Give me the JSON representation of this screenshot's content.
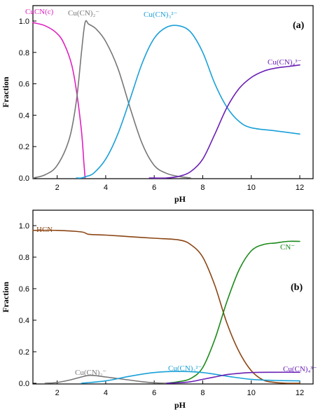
{
  "chart_data": [
    {
      "type": "line",
      "panel_label": "(a)",
      "xlabel": "pH",
      "ylabel": "Fraction",
      "xlim": [
        1,
        12
      ],
      "ylim": [
        0,
        1.0
      ],
      "xticks": [
        2,
        4,
        6,
        8,
        10,
        12
      ],
      "yticks": [
        0.0,
        0.2,
        0.4,
        0.6,
        0.8,
        1.0
      ],
      "ytick_labels": [
        "0.0",
        "0.2",
        "0.4",
        "0.6",
        "0.8",
        "1.0"
      ],
      "grid": false,
      "series": [
        {
          "name": "CuCN(c)",
          "color": "#e020c0",
          "x": [
            1.0,
            1.5,
            2.0,
            2.3,
            2.6,
            2.8,
            3.0,
            3.1,
            3.15
          ],
          "y": [
            0.99,
            0.97,
            0.92,
            0.85,
            0.72,
            0.55,
            0.3,
            0.1,
            0.0
          ]
        },
        {
          "name": "Cu(CN)₂⁻",
          "color": "#777777",
          "x": [
            1.0,
            1.5,
            2.0,
            2.5,
            2.8,
            3.0,
            3.15,
            3.3,
            3.6,
            4.0,
            4.5,
            5.0,
            5.5,
            6.0,
            6.5,
            7.0,
            7.5
          ],
          "y": [
            0.0,
            0.02,
            0.08,
            0.25,
            0.5,
            0.8,
            0.99,
            0.98,
            0.95,
            0.87,
            0.7,
            0.45,
            0.22,
            0.08,
            0.03,
            0.01,
            0.0
          ]
        },
        {
          "name": "Cu(CN)₃²⁻",
          "color": "#1aa0d8",
          "x": [
            2.8,
            3.0,
            3.2,
            3.5,
            4.0,
            4.5,
            5.0,
            5.5,
            6.0,
            6.5,
            7.0,
            7.5,
            8.0,
            8.5,
            9.0,
            9.5,
            10.0,
            11.0,
            12.0
          ],
          "y": [
            0.0,
            0.0,
            0.01,
            0.03,
            0.12,
            0.28,
            0.5,
            0.73,
            0.89,
            0.96,
            0.97,
            0.93,
            0.8,
            0.6,
            0.45,
            0.36,
            0.32,
            0.3,
            0.28
          ]
        },
        {
          "name": "Cu(CN)₄³⁻",
          "color": "#6a1fb5",
          "x": [
            5.8,
            6.5,
            7.0,
            7.5,
            8.0,
            8.5,
            9.0,
            9.5,
            10.0,
            10.5,
            11.0,
            11.5,
            12.0
          ],
          "y": [
            0.0,
            0.0,
            0.01,
            0.04,
            0.12,
            0.28,
            0.45,
            0.57,
            0.64,
            0.68,
            0.7,
            0.71,
            0.72
          ]
        }
      ]
    },
    {
      "type": "line",
      "panel_label": "(b)",
      "xlabel": "pH",
      "ylabel": "Fraction",
      "xlim": [
        1,
        12
      ],
      "ylim": [
        0,
        1.0
      ],
      "xticks": [
        2,
        4,
        6,
        8,
        10,
        12
      ],
      "yticks": [
        0.0,
        0.2,
        0.4,
        0.6,
        0.8,
        1.0
      ],
      "ytick_labels": [
        "0.0",
        "0.2",
        "0.4",
        "0.6",
        "0.8",
        "1.0"
      ],
      "grid": false,
      "series": [
        {
          "name": "HCN",
          "color": "#8b4513",
          "x": [
            1.0,
            2.0,
            3.0,
            3.3,
            4.0,
            5.0,
            6.0,
            7.0,
            7.5,
            8.0,
            8.5,
            9.0,
            9.5,
            10.0,
            10.5,
            11.0,
            11.5,
            12.0
          ],
          "y": [
            0.97,
            0.97,
            0.96,
            0.945,
            0.94,
            0.93,
            0.92,
            0.91,
            0.88,
            0.8,
            0.62,
            0.38,
            0.2,
            0.08,
            0.02,
            0.005,
            0.0,
            0.0
          ]
        },
        {
          "name": "CN⁻",
          "color": "#1a8a1a",
          "x": [
            6.5,
            7.0,
            7.5,
            8.0,
            8.5,
            9.0,
            9.5,
            10.0,
            10.5,
            11.0,
            11.5,
            12.0
          ],
          "y": [
            0.0,
            0.01,
            0.03,
            0.1,
            0.28,
            0.52,
            0.72,
            0.84,
            0.88,
            0.89,
            0.9,
            0.9
          ]
        },
        {
          "name": "Cu(CN)₂⁻",
          "color": "#777777",
          "x": [
            1.5,
            2.0,
            2.5,
            3.0,
            3.3,
            3.6,
            4.0,
            4.5,
            5.0,
            5.5,
            6.0,
            6.5
          ],
          "y": [
            0.0,
            0.005,
            0.02,
            0.04,
            0.05,
            0.048,
            0.04,
            0.03,
            0.02,
            0.01,
            0.003,
            0.0
          ]
        },
        {
          "name": "Cu(CN)₃²⁻",
          "color": "#1aa0d8",
          "x": [
            3.0,
            4.0,
            5.0,
            6.0,
            7.0,
            8.0,
            9.0,
            10.0,
            11.0,
            12.0
          ],
          "y": [
            0.0,
            0.015,
            0.045,
            0.068,
            0.075,
            0.068,
            0.045,
            0.025,
            0.018,
            0.015
          ]
        },
        {
          "name": "Cu(CN)₄³⁻",
          "color": "#6a1fb5",
          "x": [
            6.5,
            7.0,
            7.5,
            8.0,
            8.5,
            9.0,
            9.5,
            10.0,
            11.0,
            12.0
          ],
          "y": [
            0.0,
            0.003,
            0.01,
            0.025,
            0.04,
            0.055,
            0.063,
            0.068,
            0.07,
            0.07
          ]
        }
      ]
    }
  ]
}
